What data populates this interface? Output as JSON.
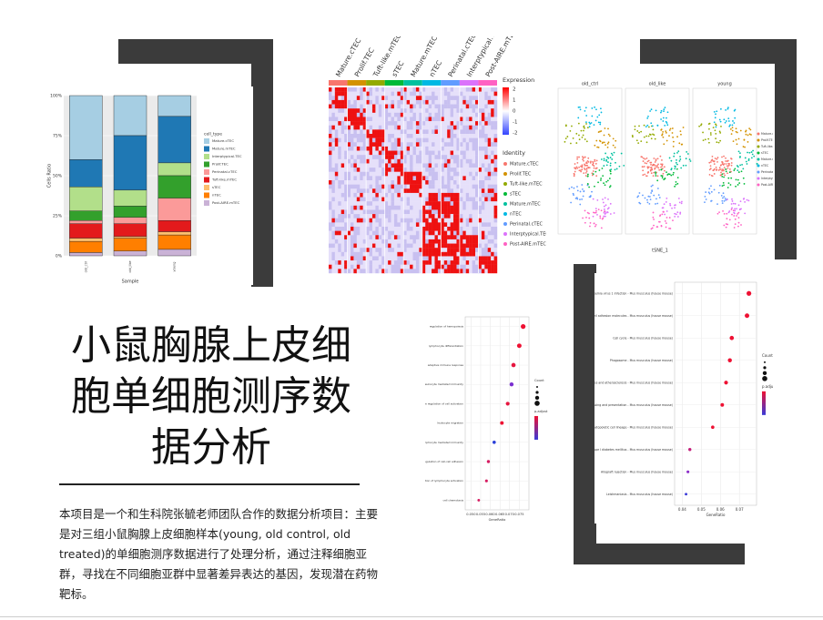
{
  "title": "小鼠胸腺上皮细胞单细胞测序数据分析",
  "description": "本项目是一个和生科院张毓老师团队合作的数据分析项目：主要是对三组小鼠胸腺上皮细胞样本(young, old control, old treated)的单细胞测序数据进行了处理分析，通过注释细胞亚群，寻找在不同细胞亚群中显著差异表达的基因，发现潜在药物靶标。",
  "chart_data": [
    {
      "type": "stacked_bar",
      "ylabel": "Cells Ratio",
      "xlabel": "Sample",
      "legend_title": "cell_type",
      "categories": [
        "old_ctrl",
        "old_like",
        "young"
      ],
      "ylim": [
        0,
        100
      ],
      "yticks": [
        {
          "value": 0,
          "label": "0%"
        },
        {
          "value": 25,
          "label": "25%"
        },
        {
          "value": 50,
          "label": "50%"
        },
        {
          "value": 75,
          "label": "75%"
        },
        {
          "value": 100,
          "label": "100%"
        }
      ],
      "series": [
        {
          "name": "Mature.cTEC",
          "color": "#a6cee3",
          "values": [
            40,
            25,
            13
          ]
        },
        {
          "name": "Mature.mTEC",
          "color": "#1f78b4",
          "values": [
            17,
            34,
            29
          ]
        },
        {
          "name": "Interptypical.TEC",
          "color": "#b2df8a",
          "values": [
            15,
            10,
            8
          ]
        },
        {
          "name": "Prolif.TEC",
          "color": "#33a02c",
          "values": [
            6,
            7,
            14
          ]
        },
        {
          "name": "Perinatal.cTEC",
          "color": "#fb9a99",
          "values": [
            2,
            4,
            14
          ]
        },
        {
          "name": "Tuft-like.mTEC",
          "color": "#e31a1c",
          "values": [
            9,
            8,
            7
          ]
        },
        {
          "name": "sTEC",
          "color": "#fdbf6f",
          "values": [
            2,
            1,
            2
          ]
        },
        {
          "name": "nTEC",
          "color": "#ff7f00",
          "values": [
            7,
            8,
            9
          ]
        },
        {
          "name": "Post-AIRE.mTEC",
          "color": "#cab2d6",
          "values": [
            2,
            3,
            4
          ]
        }
      ]
    },
    {
      "type": "dot",
      "xlabel": "GeneRatio",
      "legend_title": "Count",
      "color_title": "p.adjust",
      "categories": [
        "regulation of hemopoiesis",
        "lymphocyte differentiation",
        "adaptive immune response",
        "leukocyte mediated immunity",
        "positive regulation of cell activation",
        "leukocyte migration",
        "lymphocyte mediated immunity",
        "positive regulation of cell-cell adhesion",
        "positive regulation of lymphocyte activation",
        "cell chemotaxis"
      ],
      "values": [
        0.077,
        0.075,
        0.072,
        0.071,
        0.069,
        0.066,
        0.062,
        0.059,
        0.058,
        0.054
      ],
      "colors": [
        "#ee1133",
        "#ee1133",
        "#e6163f",
        "#7a2fd0",
        "#e6163f",
        "#ee1133",
        "#2a3fd8",
        "#d61a60",
        "#d61a60",
        "#d61a60"
      ],
      "xlim": [
        0.047,
        0.08
      ],
      "xticks": [
        {
          "value": 0.05,
          "label": "0.050"
        },
        {
          "value": 0.055,
          "label": "0.055"
        },
        {
          "value": 0.06,
          "label": "0.060"
        },
        {
          "value": 0.065,
          "label": "0.065"
        },
        {
          "value": 0.07,
          "label": "0.070"
        },
        {
          "value": 0.075,
          "label": "0.075"
        }
      ]
    },
    {
      "type": "dot",
      "xlabel": "GeneRatio",
      "legend_title": "Count",
      "color_title": "p.adjust",
      "categories": [
        "Human T-cell leukemia virus 1 infection - Mus musculus (house mouse)",
        "Cell adhesion molecules - Mus musculus (house mouse)",
        "Cell cycle - Mus musculus (house mouse)",
        "Phagosome - Mus musculus (house mouse)",
        "Fluid shear stress and atherosclerosis - Mus musculus (house mouse)",
        "Antigen processing and presentation - Mus musculus (house mouse)",
        "Hematopoietic cell lineage - Mus musculus (house mouse)",
        "Type I diabetes mellitus - Mus musculus (house mouse)",
        "Allograft rejection - Mus musculus (house mouse)",
        "Leishmaniasis - Mus musculus (house mouse)"
      ],
      "values": [
        0.075,
        0.074,
        0.066,
        0.065,
        0.063,
        0.061,
        0.056,
        0.044,
        0.043,
        0.042
      ],
      "colors": [
        "#ee1133",
        "#ee1133",
        "#ee1133",
        "#ee1133",
        "#ee1133",
        "#ee1133",
        "#ee1133",
        "#c41e7a",
        "#8a2bc8",
        "#3a3ad8"
      ],
      "xlim": [
        0.036,
        0.079
      ],
      "xticks": [
        0.04,
        0.05,
        0.06,
        0.07
      ]
    }
  ],
  "heatmap": {
    "columns": [
      "Mature.cTEC",
      "Prolif.TEC",
      "Tuft-like.mTEC",
      "sTEC",
      "Mature.mTEC",
      "nTEC",
      "Perinatal.cTEC",
      "Interptypical.TEC",
      "Post-AIRE.mTEC"
    ],
    "legend_title": "Expression",
    "scale_labels": [
      "2",
      "1",
      "0",
      "-1",
      "-2"
    ],
    "identity_title": "Identity"
  },
  "tsne": {
    "panels": [
      "old_ctrl",
      "old_like",
      "young"
    ],
    "xlabel": "tSNE_1"
  }
}
